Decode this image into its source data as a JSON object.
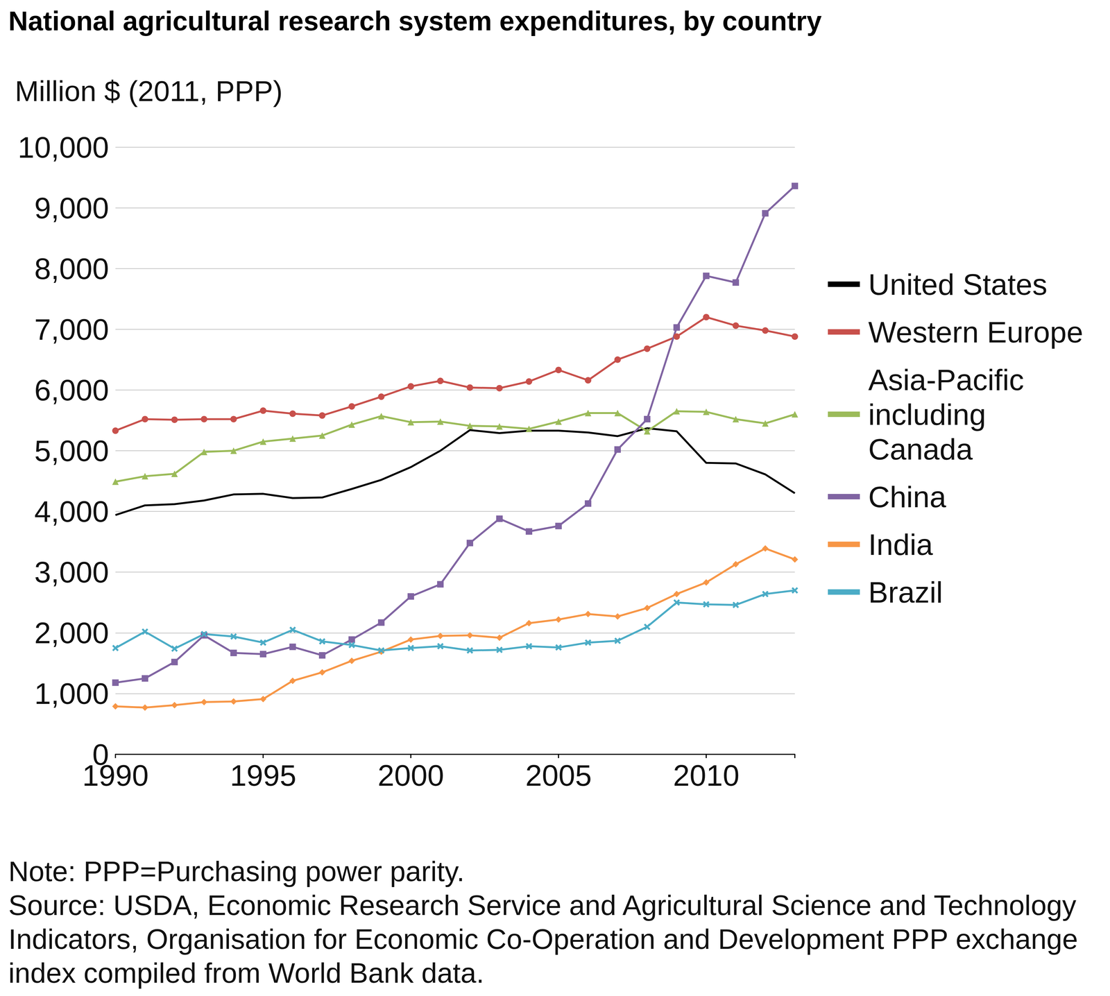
{
  "chart_data": {
    "type": "line",
    "title": "National agricultural research system expenditures, by country",
    "y_label": "Million $ (2011, PPP)",
    "notes": [
      "Note: PPP=Purchasing power parity.",
      "Source: USDA, Economic Research Service and Agricultural Science and Technology Indicators, Organisation for Economic Co-Operation and Development PPP exchange index compiled from World Bank data."
    ],
    "x": [
      1990,
      1991,
      1992,
      1993,
      1994,
      1995,
      1996,
      1997,
      1998,
      1999,
      2000,
      2001,
      2002,
      2003,
      2004,
      2005,
      2006,
      2007,
      2008,
      2009,
      2010,
      2011,
      2012,
      2013
    ],
    "series": [
      {
        "name": "United States",
        "color": "#000000",
        "marker": "none",
        "values": [
          3940,
          4100,
          4120,
          4180,
          4280,
          4290,
          4220,
          4230,
          4370,
          4520,
          4730,
          5000,
          5340,
          5290,
          5330,
          5330,
          5300,
          5240,
          5370,
          5320,
          4800,
          4790,
          4610,
          4300
        ]
      },
      {
        "name": "Western Europe",
        "color": "#c8504b",
        "marker": "circle",
        "values": [
          5330,
          5520,
          5510,
          5520,
          5520,
          5660,
          5610,
          5580,
          5730,
          5890,
          6060,
          6150,
          6040,
          6030,
          6140,
          6330,
          6160,
          6500,
          6680,
          6880,
          7200,
          7060,
          6980,
          6880
        ]
      },
      {
        "name": "Asia-Pacific including Canada",
        "color": "#9bbb59",
        "marker": "triangle",
        "values": [
          4490,
          4580,
          4620,
          4980,
          5000,
          5150,
          5200,
          5250,
          5430,
          5570,
          5470,
          5480,
          5410,
          5400,
          5360,
          5480,
          5620,
          5620,
          5320,
          5650,
          5640,
          5520,
          5450,
          5600
        ]
      },
      {
        "name": "China",
        "color": "#8064a2",
        "marker": "square",
        "values": [
          1180,
          1250,
          1520,
          1960,
          1670,
          1650,
          1770,
          1630,
          1890,
          2170,
          2600,
          2800,
          3480,
          3880,
          3670,
          3760,
          4130,
          5020,
          5520,
          7030,
          7880,
          7770,
          8910,
          9360
        ]
      },
      {
        "name": "India",
        "color": "#f79646",
        "marker": "diamond",
        "values": [
          790,
          770,
          810,
          860,
          870,
          910,
          1210,
          1350,
          1540,
          1690,
          1890,
          1950,
          1960,
          1920,
          2160,
          2220,
          2310,
          2270,
          2410,
          2640,
          2830,
          3130,
          3390,
          3210
        ]
      },
      {
        "name": "Brazil",
        "color": "#4bacc6",
        "marker": "x",
        "values": [
          1750,
          2020,
          1740,
          1980,
          1940,
          1840,
          2050,
          1860,
          1800,
          1710,
          1750,
          1780,
          1710,
          1720,
          1780,
          1760,
          1840,
          1870,
          2100,
          2500,
          2470,
          2460,
          2640,
          2700
        ]
      }
    ],
    "xlim": [
      1990,
      2013
    ],
    "xticks": [
      1990,
      1995,
      2000,
      2005,
      2010
    ],
    "ylim": [
      0,
      10000
    ],
    "yticks": [
      0,
      {
        "value": 1000,
        "label": "1,000"
      },
      {
        "value": 2000,
        "label": "2,000"
      },
      {
        "value": 3000,
        "label": "3,000"
      },
      {
        "value": 4000,
        "label": "4,000"
      },
      {
        "value": 5000,
        "label": "5,000"
      },
      {
        "value": 6000,
        "label": "6,000"
      },
      {
        "value": 7000,
        "label": "7,000"
      },
      {
        "value": 8000,
        "label": "8,000"
      },
      {
        "value": 9000,
        "label": "9,000"
      },
      {
        "value": 10000,
        "label": "10,000"
      }
    ],
    "grid": true,
    "legend": "right"
  }
}
